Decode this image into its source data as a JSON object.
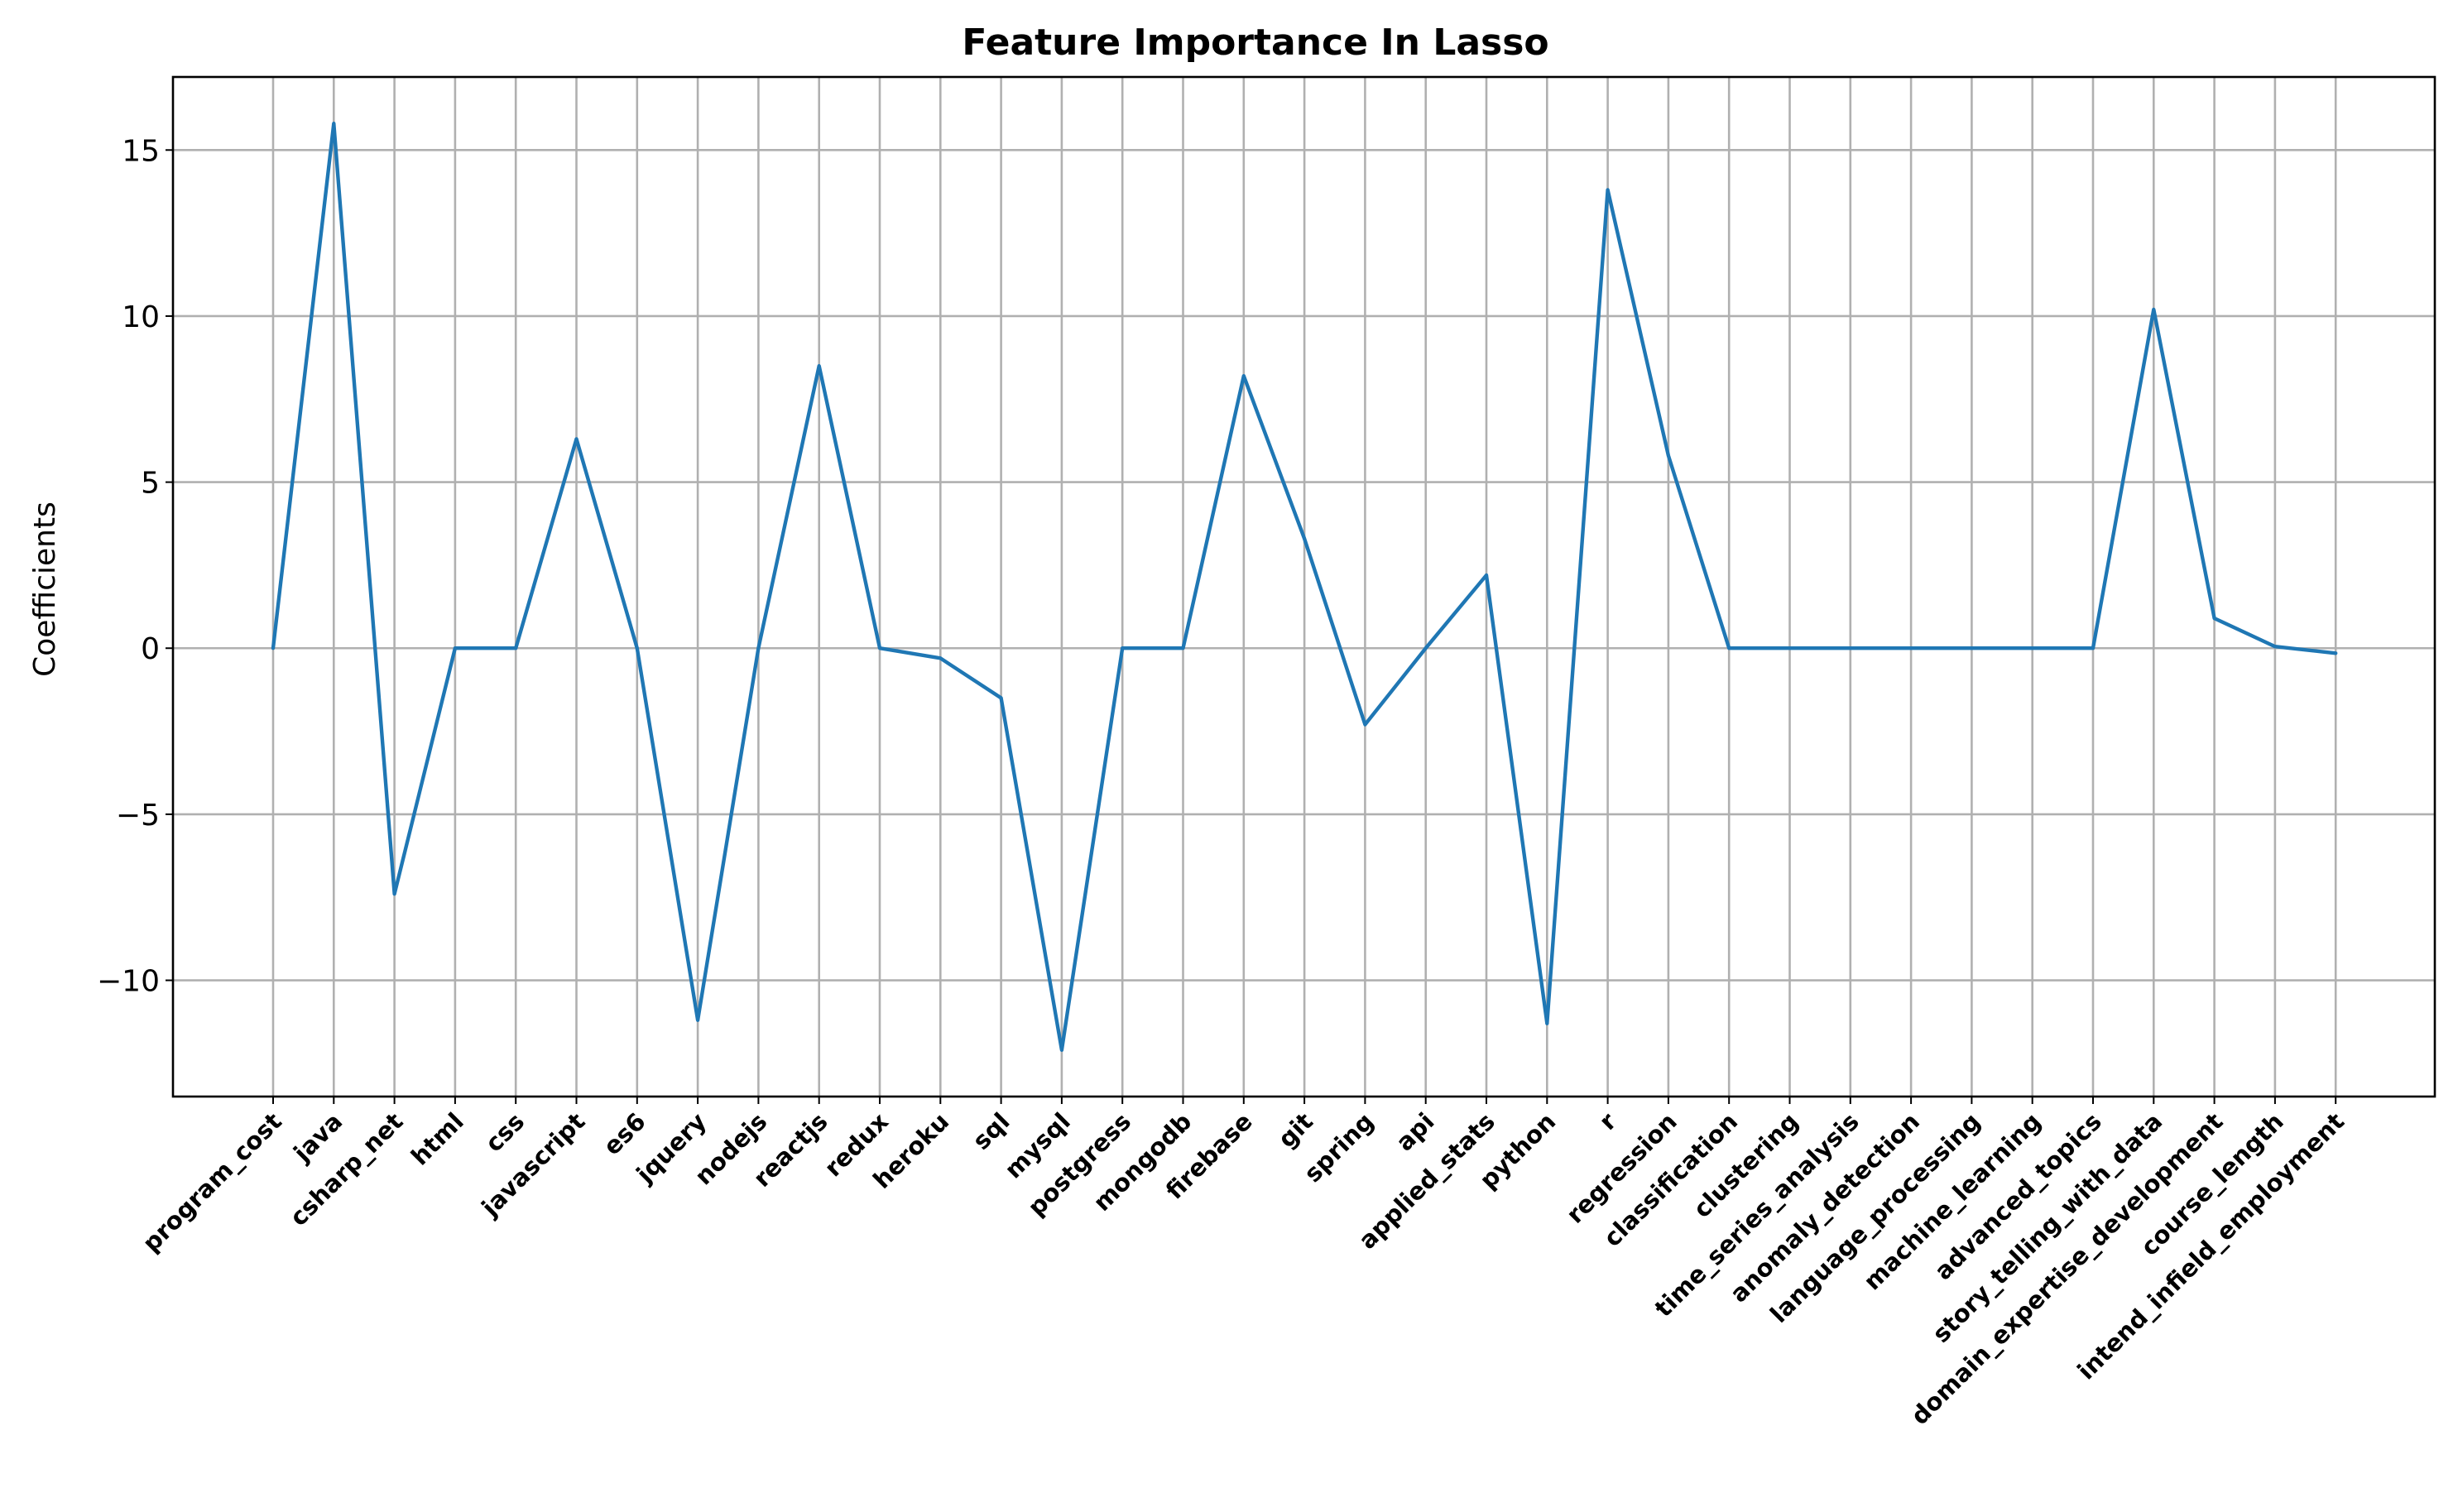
{
  "chart_data": {
    "type": "line",
    "title": "Feature Importance In Lasso",
    "xlabel": "",
    "ylabel": "Coefficients",
    "ylim": [
      -13.5,
      17.2
    ],
    "yticks": [
      15,
      10,
      5,
      0,
      -5,
      -10
    ],
    "ytick_labels": [
      "15",
      "10",
      "5",
      "0",
      "−5",
      "−10"
    ],
    "grid": true,
    "categories": [
      "program_cost",
      "java",
      "csharp_net",
      "html",
      "css",
      "javascript",
      "es6",
      "jquery",
      "nodejs",
      "reactjs",
      "redux",
      "heroku",
      "sql",
      "mysql",
      "postgress",
      "mongodb",
      "firebase",
      "git",
      "spring",
      "api",
      "applied_stats",
      "python",
      "r",
      "regression",
      "classification",
      "clustering",
      "time_series_analysis",
      "anomaly_detection",
      "language_processing",
      "machine_learning",
      "advanced_topics",
      "story_telling_with_data",
      "domain_expertise_development",
      "course_length",
      "intend_infield_employment"
    ],
    "series": [
      {
        "color": "#1f77b4",
        "values": [
          0,
          15.8,
          -7.4,
          0,
          0,
          6.3,
          0,
          -11.2,
          0,
          8.5,
          0,
          -0.3,
          -1.5,
          -12.1,
          0,
          0,
          8.2,
          3.3,
          -2.3,
          0,
          2.2,
          -11.3,
          13.8,
          5.8,
          0,
          0,
          0,
          0,
          0,
          0,
          0,
          10.2,
          0.9,
          0.05,
          -0.15
        ]
      }
    ]
  }
}
